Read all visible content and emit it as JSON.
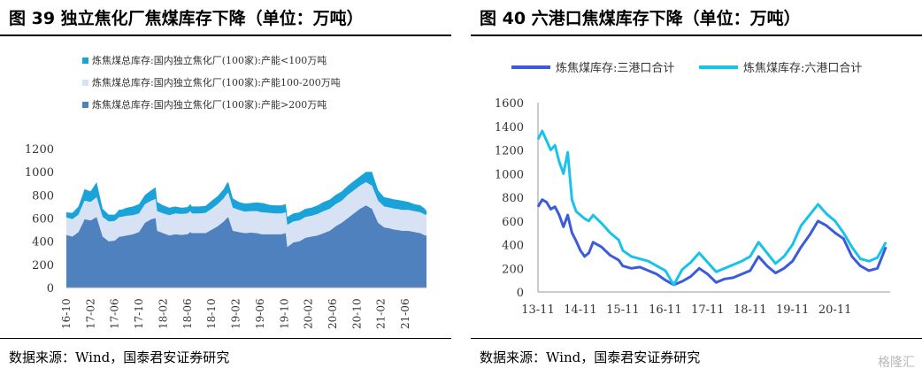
{
  "left": {
    "title": "图 39 独立焦化厂焦煤库存下降（单位：万吨）",
    "source": "数据来源：Wind，国泰君安证券研究",
    "chart_data": {
      "type": "area",
      "stacked": true,
      "legend": [
        "炼焦煤总库存:国内独立焦化厂(100家):产能<100万吨",
        "炼焦煤总库存:国内独立焦化厂(100家):产能100-200万吨",
        "炼焦煤总库存:国内独立焦化厂(100家):产能>200万吨"
      ],
      "legend_position": "top-left",
      "colors": [
        "#1aa3d9",
        "#d7e3f4",
        "#4e81bd"
      ],
      "ylim": [
        0,
        1200
      ],
      "yticks": [
        "0",
        "200",
        "400",
        "600",
        "800",
        "1000",
        "1200"
      ],
      "xticks": [
        "16-10",
        "17-02",
        "17-06",
        "17-10",
        "18-02",
        "18-06",
        "18-10",
        "19-02",
        "19-06",
        "19-10",
        "20-02",
        "20-06",
        "20-10",
        "21-02",
        "21-06"
      ],
      "x": [
        0,
        2,
        4,
        5.5,
        6,
        8,
        10,
        12,
        14,
        16,
        17.5,
        18,
        20,
        22,
        24,
        26,
        28,
        29.5,
        30,
        32,
        34,
        36,
        38,
        40,
        41,
        41.5,
        42,
        44,
        46,
        48,
        50,
        52,
        53,
        53.5,
        55,
        57,
        59,
        61,
        63,
        64.5,
        65,
        67,
        69,
        71,
        72.5,
        73,
        75,
        77,
        79,
        81,
        83,
        85,
        87,
        89,
        91,
        93,
        95,
        97,
        99,
        101,
        103,
        105,
        107,
        108.5,
        109,
        111,
        113,
        115,
        117,
        118.5,
        119
      ],
      "series": [
        {
          "name": "炼焦煤总库存:国内独立焦化厂(100家):产能>200万吨",
          "values": [
            455,
            440,
            480,
            560,
            590,
            580,
            610,
            440,
            400,
            405,
            440,
            440,
            450,
            460,
            480,
            560,
            590,
            600,
            490,
            470,
            450,
            460,
            455,
            460,
            480,
            470,
            470,
            470,
            470,
            500,
            530,
            570,
            600,
            610,
            490,
            480,
            470,
            475,
            470,
            460,
            460,
            460,
            460,
            460,
            470,
            350,
            390,
            400,
            430,
            440,
            450,
            470,
            490,
            530,
            560,
            600,
            640,
            680,
            710,
            680,
            560,
            520,
            510,
            500,
            500,
            490,
            490,
            480,
            470,
            450,
            450
          ]
        },
        {
          "name": "炼焦煤总库存:国内独立焦化厂(100家):产能100-200万吨",
          "values": [
            150,
            150,
            150,
            160,
            160,
            160,
            170,
            170,
            170,
            170,
            170,
            170,
            170,
            165,
            160,
            160,
            160,
            165,
            170,
            170,
            175,
            180,
            180,
            180,
            180,
            170,
            170,
            170,
            175,
            180,
            190,
            200,
            210,
            210,
            200,
            190,
            185,
            185,
            190,
            190,
            190,
            185,
            180,
            180,
            180,
            190,
            180,
            180,
            180,
            180,
            185,
            190,
            190,
            190,
            190,
            200,
            200,
            200,
            200,
            200,
            190,
            180,
            180,
            180,
            180,
            180,
            180,
            180,
            180,
            180,
            180
          ]
        },
        {
          "name": "炼焦煤总库存:国内独立焦化厂(100家):产能<100万吨",
          "values": [
            45,
            55,
            70,
            90,
            100,
            90,
            130,
            70,
            60,
            55,
            65,
            60,
            70,
            75,
            80,
            80,
            90,
            100,
            80,
            70,
            65,
            60,
            55,
            55,
            60,
            60,
            60,
            60,
            60,
            70,
            70,
            80,
            90,
            90,
            80,
            70,
            70,
            70,
            75,
            80,
            80,
            70,
            70,
            70,
            70,
            70,
            70,
            70,
            70,
            70,
            75,
            80,
            80,
            80,
            80,
            80,
            80,
            80,
            90,
            120,
            90,
            80,
            80,
            80,
            80,
            80,
            70,
            60,
            60,
            50,
            30
          ]
        }
      ]
    }
  },
  "right": {
    "title": "图 40 六港口焦煤库存下降（单位：万吨）",
    "source": "数据来源：Wind，国泰君安证券研究",
    "chart_data": {
      "type": "line",
      "legend_position": "top",
      "colors": [
        "#3b5bdb",
        "#18c3ea"
      ],
      "ylim": [
        0,
        1600
      ],
      "yticks": [
        "0",
        "200",
        "400",
        "600",
        "800",
        "1000",
        "1200",
        "1400",
        "1600"
      ],
      "xticks": [
        "13-11",
        "14-11",
        "15-11",
        "16-11",
        "17-11",
        "18-11",
        "19-11",
        "20-11"
      ],
      "x": [
        0,
        0.1,
        0.2,
        0.3,
        0.4,
        0.5,
        0.6,
        0.7,
        0.8,
        0.9,
        1.0,
        1.1,
        1.2,
        1.3,
        1.5,
        1.7,
        1.9,
        2.0,
        2.2,
        2.4,
        2.6,
        2.8,
        3.0,
        3.2,
        3.4,
        3.6,
        3.8,
        4.0,
        4.2,
        4.4,
        4.6,
        4.8,
        5.0,
        5.2,
        5.4,
        5.6,
        5.8,
        6.0,
        6.2,
        6.4,
        6.6,
        6.8,
        7.0,
        7.2,
        7.4,
        7.6,
        7.8,
        8.0,
        8.2
      ],
      "series": [
        {
          "name": "炼焦煤库存:三港口合计",
          "values": [
            720,
            780,
            760,
            700,
            720,
            650,
            550,
            650,
            500,
            430,
            350,
            300,
            330,
            420,
            380,
            310,
            270,
            220,
            200,
            210,
            180,
            150,
            100,
            60,
            90,
            130,
            200,
            150,
            80,
            110,
            120,
            150,
            180,
            300,
            220,
            160,
            200,
            260,
            380,
            480,
            600,
            560,
            500,
            450,
            300,
            220,
            180,
            200,
            380
          ]
        },
        {
          "name": "炼焦煤库存:六港口合计",
          "values": [
            1290,
            1360,
            1280,
            1200,
            1240,
            1100,
            1000,
            1180,
            780,
            680,
            650,
            620,
            600,
            650,
            580,
            500,
            440,
            350,
            300,
            280,
            260,
            220,
            180,
            60,
            190,
            250,
            330,
            250,
            170,
            200,
            230,
            260,
            300,
            420,
            330,
            240,
            300,
            400,
            560,
            650,
            740,
            660,
            600,
            500,
            380,
            280,
            260,
            290,
            420
          ]
        }
      ]
    }
  },
  "watermark": "格隆汇"
}
